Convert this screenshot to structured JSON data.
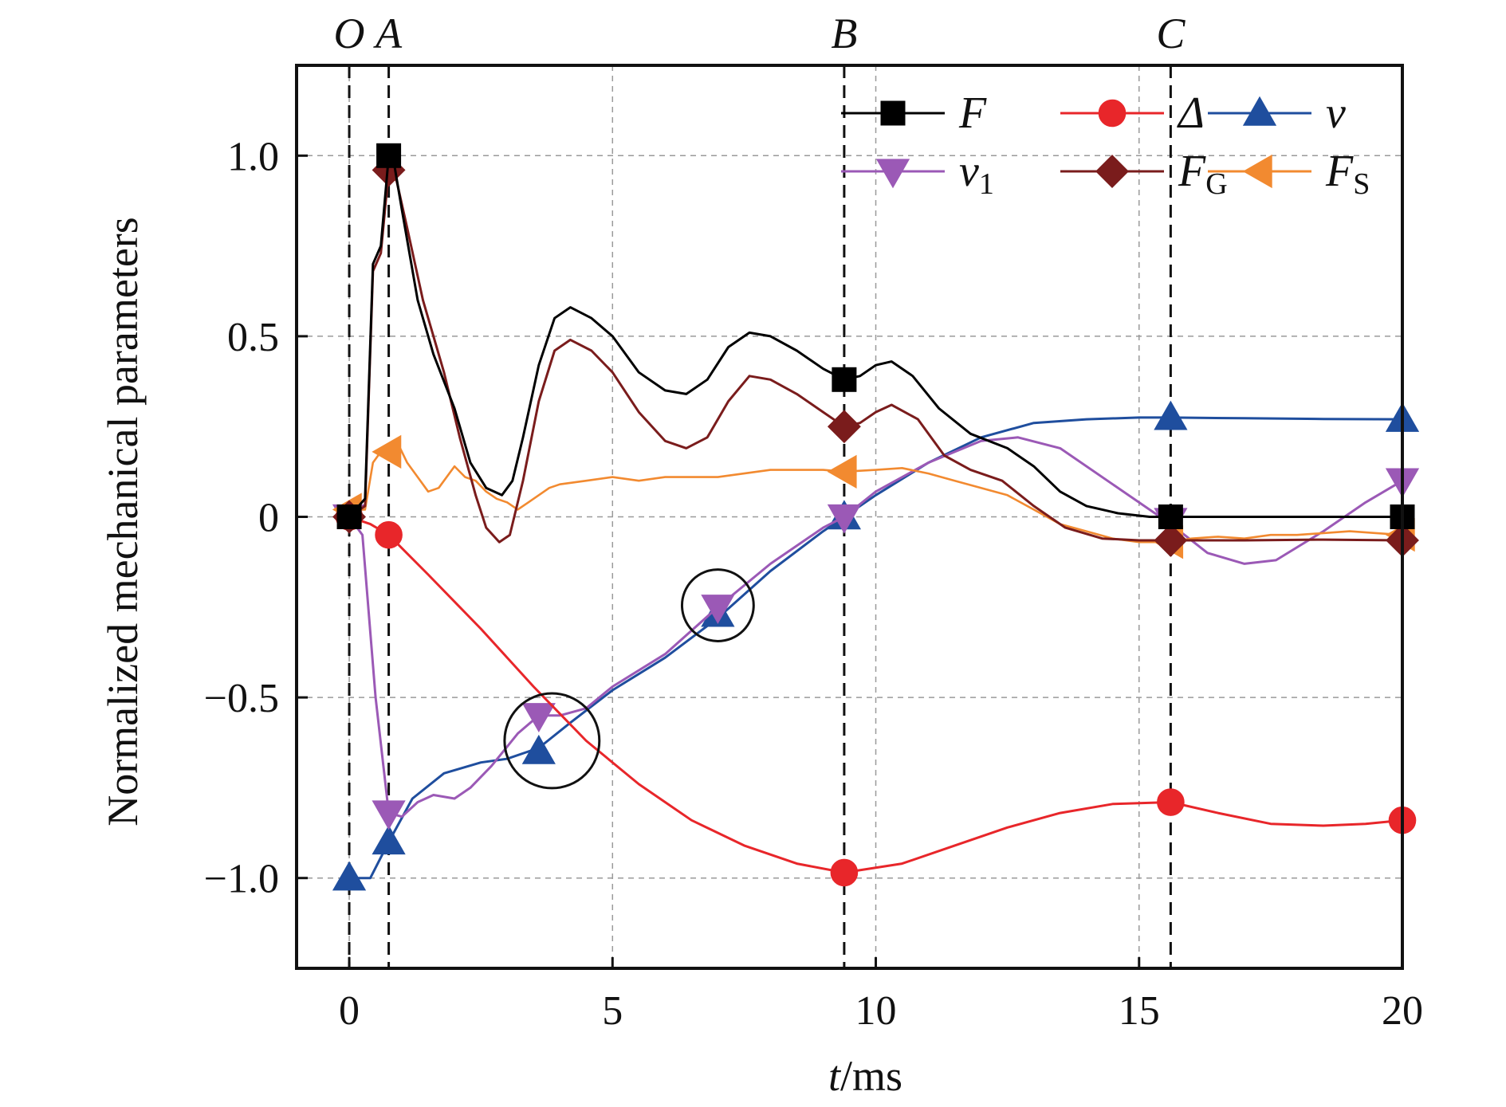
{
  "chart_data": {
    "type": "line",
    "xlabel_var": "t",
    "xlabel_unit": "/ms",
    "ylabel": "Normalized mechanical parameters",
    "xlim": [
      -1,
      20
    ],
    "ylim": [
      -1.25,
      1.25
    ],
    "xticks": [
      0,
      5,
      10,
      15,
      20
    ],
    "xtick_labels": [
      "0",
      "5",
      "10",
      "15",
      "20"
    ],
    "yticks": [
      -1.0,
      -0.5,
      0,
      0.5,
      1.0
    ],
    "ytick_labels": [
      "−1.0",
      "−0.5",
      "0",
      "0.5",
      "1.0"
    ],
    "grid": true,
    "legend_position": "top-right",
    "events": [
      {
        "label": "O",
        "x": 0
      },
      {
        "label": "A",
        "x": 0.75
      },
      {
        "label": "B",
        "x": 9.4
      },
      {
        "label": "C",
        "x": 15.6
      }
    ],
    "series": [
      {
        "name": "F",
        "subscript": "",
        "color": "#000000",
        "marker": "square",
        "points": [
          [
            0,
            0
          ],
          [
            0.3,
            0.05
          ],
          [
            0.45,
            0.7
          ],
          [
            0.6,
            0.75
          ],
          [
            0.75,
            1.0
          ],
          [
            0.85,
            0.98
          ],
          [
            1.0,
            0.85
          ],
          [
            1.3,
            0.6
          ],
          [
            1.6,
            0.45
          ],
          [
            2.0,
            0.3
          ],
          [
            2.3,
            0.15
          ],
          [
            2.6,
            0.08
          ],
          [
            2.9,
            0.06
          ],
          [
            3.1,
            0.1
          ],
          [
            3.3,
            0.22
          ],
          [
            3.6,
            0.42
          ],
          [
            3.9,
            0.55
          ],
          [
            4.2,
            0.58
          ],
          [
            4.6,
            0.55
          ],
          [
            5.0,
            0.5
          ],
          [
            5.5,
            0.4
          ],
          [
            6.0,
            0.35
          ],
          [
            6.4,
            0.34
          ],
          [
            6.8,
            0.38
          ],
          [
            7.2,
            0.47
          ],
          [
            7.6,
            0.51
          ],
          [
            8.0,
            0.5
          ],
          [
            8.5,
            0.46
          ],
          [
            9.0,
            0.41
          ],
          [
            9.4,
            0.38
          ],
          [
            9.7,
            0.39
          ],
          [
            10.0,
            0.42
          ],
          [
            10.3,
            0.43
          ],
          [
            10.7,
            0.39
          ],
          [
            11.2,
            0.3
          ],
          [
            11.8,
            0.23
          ],
          [
            12.5,
            0.19
          ],
          [
            13.0,
            0.14
          ],
          [
            13.5,
            0.07
          ],
          [
            14.0,
            0.03
          ],
          [
            14.6,
            0.01
          ],
          [
            15.2,
            0.0
          ],
          [
            15.6,
            0.0
          ],
          [
            20.0,
            0.0
          ]
        ],
        "markers": [
          [
            0,
            0
          ],
          [
            0.75,
            1.0
          ],
          [
            9.4,
            0.38
          ],
          [
            15.6,
            0.0
          ],
          [
            20,
            0.0
          ]
        ]
      },
      {
        "name": "Δ",
        "subscript": "",
        "color": "#e8262a",
        "marker": "circle",
        "points": [
          [
            0,
            0
          ],
          [
            0.4,
            -0.02
          ],
          [
            0.75,
            -0.05
          ],
          [
            1.5,
            -0.16
          ],
          [
            2.5,
            -0.31
          ],
          [
            3.5,
            -0.47
          ],
          [
            4.5,
            -0.62
          ],
          [
            5.5,
            -0.74
          ],
          [
            6.5,
            -0.84
          ],
          [
            7.5,
            -0.91
          ],
          [
            8.5,
            -0.96
          ],
          [
            9.4,
            -0.985
          ],
          [
            10.5,
            -0.96
          ],
          [
            11.5,
            -0.91
          ],
          [
            12.5,
            -0.86
          ],
          [
            13.5,
            -0.82
          ],
          [
            14.5,
            -0.795
          ],
          [
            15.6,
            -0.79
          ],
          [
            16.5,
            -0.82
          ],
          [
            17.5,
            -0.85
          ],
          [
            18.5,
            -0.855
          ],
          [
            19.3,
            -0.85
          ],
          [
            20.0,
            -0.84
          ]
        ],
        "markers": [
          [
            0,
            0
          ],
          [
            0.75,
            -0.05
          ],
          [
            9.4,
            -0.985
          ],
          [
            15.6,
            -0.79
          ],
          [
            20,
            -0.84
          ]
        ]
      },
      {
        "name": "v",
        "subscript": "",
        "color": "#1f4e9e",
        "marker": "triangle-up",
        "points": [
          [
            0,
            -1.0
          ],
          [
            0.4,
            -1.0
          ],
          [
            0.75,
            -0.9
          ],
          [
            1.2,
            -0.78
          ],
          [
            1.8,
            -0.71
          ],
          [
            2.5,
            -0.68
          ],
          [
            3.0,
            -0.67
          ],
          [
            3.6,
            -0.64
          ],
          [
            4.2,
            -0.57
          ],
          [
            5.0,
            -0.48
          ],
          [
            6.0,
            -0.39
          ],
          [
            7.0,
            -0.28
          ],
          [
            8.0,
            -0.15
          ],
          [
            9.0,
            -0.04
          ],
          [
            9.4,
            0.0
          ],
          [
            10.0,
            0.06
          ],
          [
            11.0,
            0.15
          ],
          [
            12.0,
            0.22
          ],
          [
            13.0,
            0.26
          ],
          [
            14.0,
            0.27
          ],
          [
            15.0,
            0.275
          ],
          [
            15.6,
            0.275
          ],
          [
            17.0,
            0.273
          ],
          [
            18.5,
            0.271
          ],
          [
            20.0,
            0.27
          ]
        ],
        "markers": [
          [
            0,
            -1.0
          ],
          [
            0.75,
            -0.9
          ],
          [
            3.6,
            -0.65
          ],
          [
            7.0,
            -0.27
          ],
          [
            9.4,
            0.0
          ],
          [
            15.6,
            0.275
          ],
          [
            20,
            0.27
          ]
        ]
      },
      {
        "name": "v",
        "subscript": "1",
        "color": "#9b59b6",
        "marker": "triangle-down",
        "points": [
          [
            0,
            0.0
          ],
          [
            0.25,
            -0.05
          ],
          [
            0.5,
            -0.5
          ],
          [
            0.75,
            -0.82
          ],
          [
            1.0,
            -0.83
          ],
          [
            1.3,
            -0.79
          ],
          [
            1.6,
            -0.77
          ],
          [
            2.0,
            -0.78
          ],
          [
            2.3,
            -0.75
          ],
          [
            2.7,
            -0.69
          ],
          [
            3.2,
            -0.6
          ],
          [
            3.6,
            -0.55
          ],
          [
            4.0,
            -0.55
          ],
          [
            4.5,
            -0.53
          ],
          [
            5.0,
            -0.47
          ],
          [
            6.0,
            -0.38
          ],
          [
            7.0,
            -0.25
          ],
          [
            8.0,
            -0.13
          ],
          [
            9.0,
            -0.03
          ],
          [
            9.4,
            0.0
          ],
          [
            10.0,
            0.07
          ],
          [
            11.0,
            0.15
          ],
          [
            12.0,
            0.21
          ],
          [
            12.7,
            0.22
          ],
          [
            13.5,
            0.19
          ],
          [
            14.5,
            0.09
          ],
          [
            15.3,
            0.01
          ],
          [
            15.6,
            -0.02
          ],
          [
            16.3,
            -0.1
          ],
          [
            17.0,
            -0.13
          ],
          [
            17.6,
            -0.12
          ],
          [
            18.5,
            -0.04
          ],
          [
            19.3,
            0.04
          ],
          [
            20.0,
            0.1
          ]
        ],
        "markers": [
          [
            0,
            0.0
          ],
          [
            0.75,
            -0.82
          ],
          [
            3.6,
            -0.55
          ],
          [
            7.0,
            -0.25
          ],
          [
            9.4,
            0.0
          ],
          [
            15.6,
            -0.01
          ],
          [
            20,
            0.1
          ]
        ]
      },
      {
        "name": "F",
        "subscript": "G",
        "color": "#7a1c1c",
        "marker": "diamond",
        "points": [
          [
            0,
            0
          ],
          [
            0.3,
            0.03
          ],
          [
            0.45,
            0.68
          ],
          [
            0.6,
            0.73
          ],
          [
            0.75,
            0.96
          ],
          [
            0.9,
            0.93
          ],
          [
            1.1,
            0.8
          ],
          [
            1.4,
            0.6
          ],
          [
            1.8,
            0.4
          ],
          [
            2.1,
            0.22
          ],
          [
            2.4,
            0.06
          ],
          [
            2.6,
            -0.03
          ],
          [
            2.85,
            -0.07
          ],
          [
            3.05,
            -0.05
          ],
          [
            3.3,
            0.1
          ],
          [
            3.6,
            0.32
          ],
          [
            3.9,
            0.46
          ],
          [
            4.2,
            0.49
          ],
          [
            4.6,
            0.46
          ],
          [
            5.0,
            0.4
          ],
          [
            5.5,
            0.29
          ],
          [
            6.0,
            0.21
          ],
          [
            6.4,
            0.19
          ],
          [
            6.8,
            0.22
          ],
          [
            7.2,
            0.32
          ],
          [
            7.6,
            0.39
          ],
          [
            8.0,
            0.38
          ],
          [
            8.5,
            0.34
          ],
          [
            9.0,
            0.29
          ],
          [
            9.4,
            0.25
          ],
          [
            9.7,
            0.26
          ],
          [
            10.0,
            0.29
          ],
          [
            10.3,
            0.31
          ],
          [
            10.8,
            0.27
          ],
          [
            11.3,
            0.17
          ],
          [
            11.8,
            0.13
          ],
          [
            12.4,
            0.1
          ],
          [
            13.0,
            0.03
          ],
          [
            13.6,
            -0.03
          ],
          [
            14.3,
            -0.06
          ],
          [
            15.0,
            -0.065
          ],
          [
            15.6,
            -0.065
          ],
          [
            17.0,
            -0.065
          ],
          [
            18.5,
            -0.063
          ],
          [
            20.0,
            -0.065
          ]
        ],
        "markers": [
          [
            0,
            0
          ],
          [
            0.75,
            0.96
          ],
          [
            9.4,
            0.25
          ],
          [
            15.6,
            -0.065
          ],
          [
            20,
            -0.065
          ]
        ]
      },
      {
        "name": "F",
        "subscript": "S",
        "color": "#f28a30",
        "marker": "triangle-left",
        "points": [
          [
            0,
            0.02
          ],
          [
            0.3,
            0.02
          ],
          [
            0.45,
            0.15
          ],
          [
            0.6,
            0.18
          ],
          [
            0.75,
            0.18
          ],
          [
            0.9,
            0.21
          ],
          [
            1.1,
            0.15
          ],
          [
            1.3,
            0.11
          ],
          [
            1.5,
            0.07
          ],
          [
            1.7,
            0.08
          ],
          [
            2.0,
            0.14
          ],
          [
            2.2,
            0.11
          ],
          [
            2.4,
            0.1
          ],
          [
            2.6,
            0.07
          ],
          [
            2.8,
            0.05
          ],
          [
            3.0,
            0.04
          ],
          [
            3.2,
            0.02
          ],
          [
            3.4,
            0.04
          ],
          [
            3.6,
            0.06
          ],
          [
            3.8,
            0.08
          ],
          [
            4.0,
            0.09
          ],
          [
            4.5,
            0.1
          ],
          [
            5.0,
            0.11
          ],
          [
            5.5,
            0.1
          ],
          [
            6.0,
            0.11
          ],
          [
            6.5,
            0.11
          ],
          [
            7.0,
            0.11
          ],
          [
            7.5,
            0.12
          ],
          [
            8.0,
            0.13
          ],
          [
            8.5,
            0.13
          ],
          [
            9.0,
            0.13
          ],
          [
            9.4,
            0.125
          ],
          [
            10.0,
            0.13
          ],
          [
            10.5,
            0.135
          ],
          [
            11.0,
            0.12
          ],
          [
            11.5,
            0.1
          ],
          [
            12.0,
            0.08
          ],
          [
            12.5,
            0.06
          ],
          [
            13.0,
            0.02
          ],
          [
            13.5,
            -0.02
          ],
          [
            14.0,
            -0.04
          ],
          [
            14.5,
            -0.06
          ],
          [
            15.0,
            -0.07
          ],
          [
            15.6,
            -0.07
          ],
          [
            16.0,
            -0.06
          ],
          [
            16.5,
            -0.055
          ],
          [
            17.0,
            -0.06
          ],
          [
            17.5,
            -0.05
          ],
          [
            18.0,
            -0.05
          ],
          [
            18.5,
            -0.045
          ],
          [
            19.0,
            -0.04
          ],
          [
            19.5,
            -0.045
          ],
          [
            20.0,
            -0.05
          ]
        ],
        "markers": [
          [
            0,
            0.02
          ],
          [
            0.75,
            0.18
          ],
          [
            9.4,
            0.125
          ],
          [
            15.6,
            -0.07
          ],
          [
            20,
            -0.05
          ]
        ]
      }
    ],
    "annotations": [
      {
        "type": "circle",
        "x": 3.85,
        "y": -0.62,
        "r_x": 0.9
      },
      {
        "type": "circle",
        "x": 7.0,
        "y": -0.245,
        "r_x": 0.68
      }
    ]
  }
}
